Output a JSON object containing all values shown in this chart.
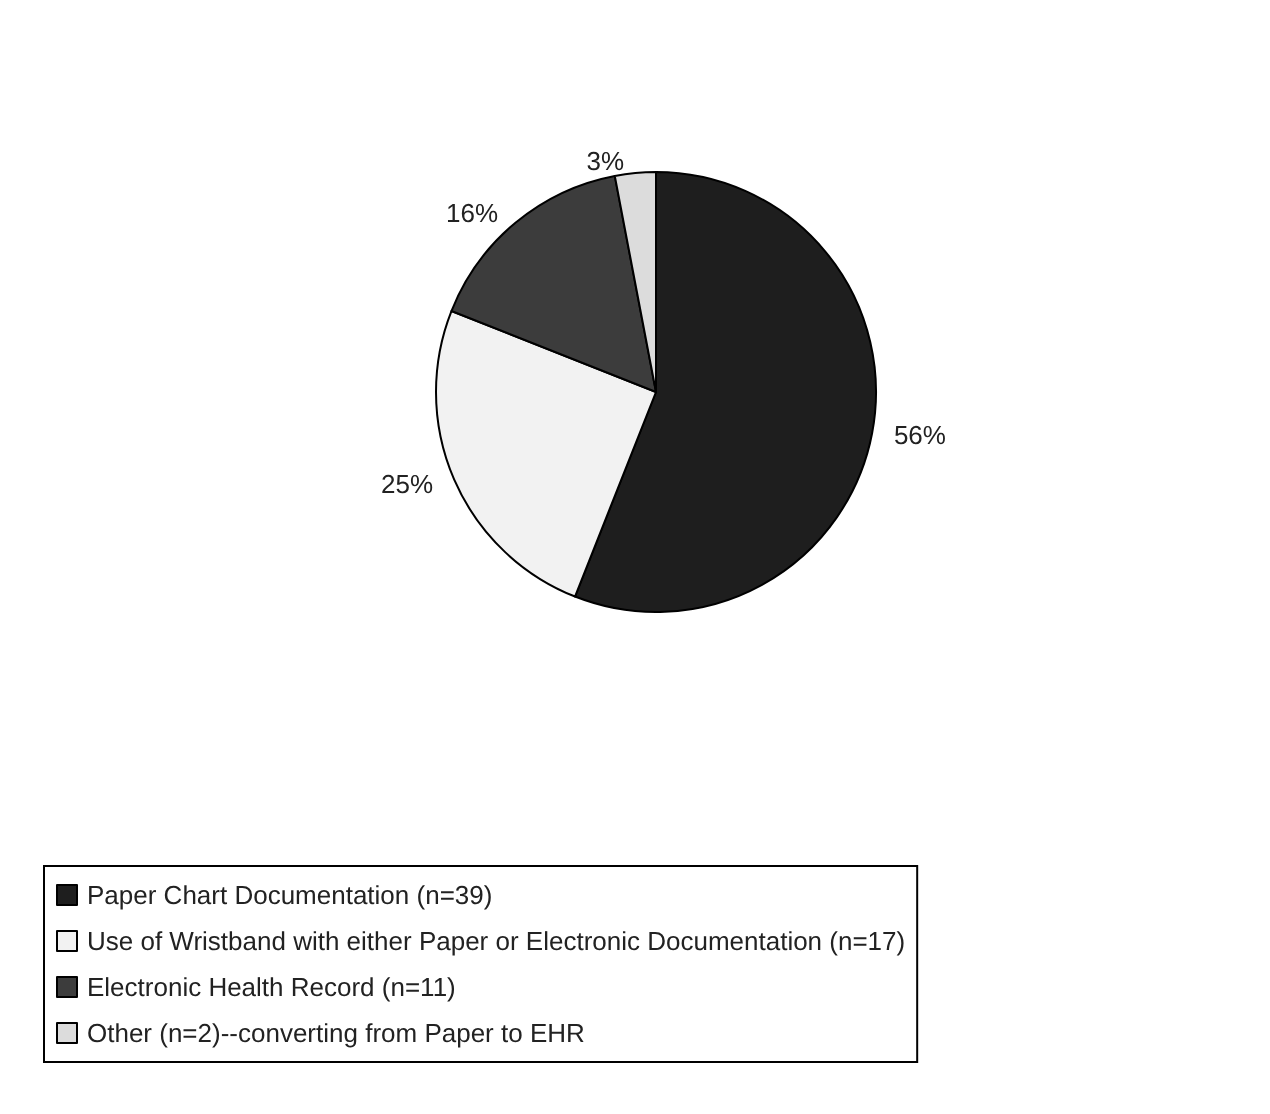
{
  "chart_data": {
    "type": "pie",
    "categories": [
      "Paper Chart Documentation (n=39)",
      "Use of Wristband with either Paper or Electronic Documentation (n=17)",
      "Electronic Health Record (n=11)",
      "Other (n=2)--converting from Paper to EHR"
    ],
    "values": [
      56,
      25,
      16,
      3
    ],
    "value_labels": [
      "56%",
      "25%",
      "16%",
      "3%"
    ],
    "colors": [
      "#1e1e1e",
      "#f2f2f2",
      "#3c3c3c",
      "#dcdcdc"
    ],
    "legend": "bottom"
  }
}
